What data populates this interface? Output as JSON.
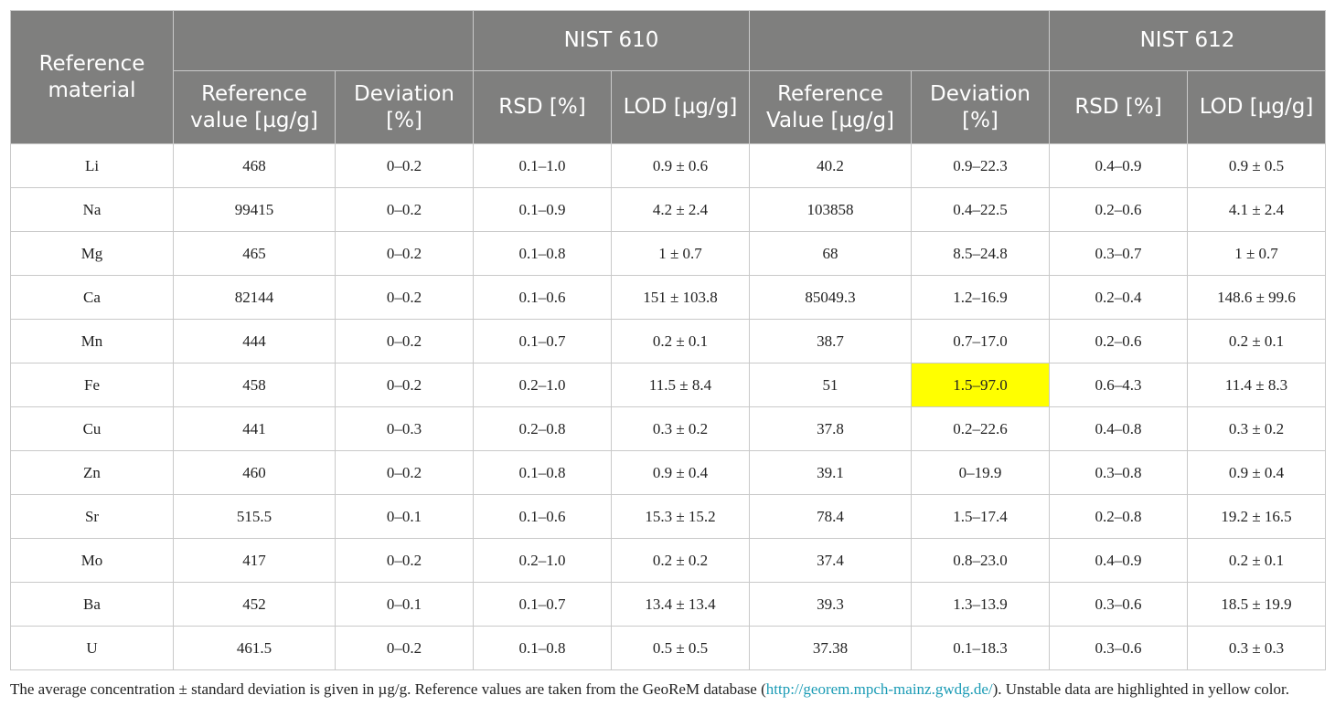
{
  "header": {
    "reference_material": "Reference material",
    "group1": "NIST 610",
    "group2": "NIST 612",
    "nist610": {
      "reference": "Reference value [µg/g]",
      "deviation": "Deviation [%]",
      "rsd": "RSD [%]",
      "lod": "LOD [µg/g]"
    },
    "nist612": {
      "reference": "Reference Value [µg/g]",
      "deviation": "Deviation [%]",
      "rsd": "RSD [%]",
      "lod": "LOD [µg/g]"
    }
  },
  "rows": [
    {
      "element": "Li",
      "ref610": "468",
      "dev610": "0–0.2",
      "rsd610": "0.1–1.0",
      "lod610": "0.9 ± 0.6",
      "ref612": "40.2",
      "dev612": "0.9–22.3",
      "rsd612": "0.4–0.9",
      "lod612": "0.9 ± 0.5"
    },
    {
      "element": "Na",
      "ref610": "99415",
      "dev610": "0–0.2",
      "rsd610": "0.1–0.9",
      "lod610": "4.2 ± 2.4",
      "ref612": "103858",
      "dev612": "0.4–22.5",
      "rsd612": "0.2–0.6",
      "lod612": "4.1 ± 2.4"
    },
    {
      "element": "Mg",
      "ref610": "465",
      "dev610": "0–0.2",
      "rsd610": "0.1–0.8",
      "lod610": "1 ± 0.7",
      "ref612": "68",
      "dev612": "8.5–24.8",
      "rsd612": "0.3–0.7",
      "lod612": "1 ± 0.7"
    },
    {
      "element": "Ca",
      "ref610": "82144",
      "dev610": "0–0.2",
      "rsd610": "0.1–0.6",
      "lod610": "151 ± 103.8",
      "ref612": "85049.3",
      "dev612": "1.2–16.9",
      "rsd612": "0.2–0.4",
      "lod612": "148.6 ± 99.6"
    },
    {
      "element": "Mn",
      "ref610": "444",
      "dev610": "0–0.2",
      "rsd610": "0.1–0.7",
      "lod610": "0.2 ± 0.1",
      "ref612": "38.7",
      "dev612": "0.7–17.0",
      "rsd612": "0.2–0.6",
      "lod612": "0.2 ± 0.1"
    },
    {
      "element": "Fe",
      "ref610": "458",
      "dev610": "0–0.2",
      "rsd610": "0.2–1.0",
      "lod610": "11.5 ± 8.4",
      "ref612": "51",
      "dev612": "1.5–97.0",
      "rsd612": "0.6–4.3",
      "lod612": "11.4 ± 8.3"
    },
    {
      "element": "Cu",
      "ref610": "441",
      "dev610": "0–0.3",
      "rsd610": "0.2–0.8",
      "lod610": "0.3 ± 0.2",
      "ref612": "37.8",
      "dev612": "0.2–22.6",
      "rsd612": "0.4–0.8",
      "lod612": "0.3 ± 0.2"
    },
    {
      "element": "Zn",
      "ref610": "460",
      "dev610": "0–0.2",
      "rsd610": "0.1–0.8",
      "lod610": "0.9 ± 0.4",
      "ref612": "39.1",
      "dev612": "0–19.9",
      "rsd612": "0.3–0.8",
      "lod612": "0.9 ± 0.4"
    },
    {
      "element": "Sr",
      "ref610": "515.5",
      "dev610": "0–0.1",
      "rsd610": "0.1–0.6",
      "lod610": "15.3 ± 15.2",
      "ref612": "78.4",
      "dev612": "1.5–17.4",
      "rsd612": "0.2–0.8",
      "lod612": "19.2 ± 16.5"
    },
    {
      "element": "Mo",
      "ref610": "417",
      "dev610": "0–0.2",
      "rsd610": "0.2–1.0",
      "lod610": "0.2 ± 0.2",
      "ref612": "37.4",
      "dev612": "0.8–23.0",
      "rsd612": "0.4–0.9",
      "lod612": "0.2 ± 0.1"
    },
    {
      "element": "Ba",
      "ref610": "452",
      "dev610": "0–0.1",
      "rsd610": "0.1–0.7",
      "lod610": "13.4 ± 13.4",
      "ref612": "39.3",
      "dev612": "1.3–13.9",
      "rsd612": "0.3–0.6",
      "lod612": "18.5 ± 19.9"
    },
    {
      "element": "U",
      "ref610": "461.5",
      "dev610": "0–0.2",
      "rsd610": "0.1–0.8",
      "lod610": "0.5 ± 0.5",
      "ref612": "37.38",
      "dev612": "0.1–18.3",
      "rsd612": "0.3–0.6",
      "lod612": "0.3 ± 0.3"
    }
  ],
  "highlight": {
    "row": 5,
    "column": "dev612",
    "color": "#ffff00"
  },
  "colors": {
    "header_bg": "#7f7f7e",
    "header_text": "#ffffff",
    "link": "#1a9bb5",
    "highlight": "#ffff00"
  },
  "footnote": {
    "before": "The average concentration ± standard deviation is given in µg/g. Reference values are taken from the GeoReM database (",
    "link": "http://georem.mpch-mainz.gwdg.de/",
    "after": "). Unstable data are highlighted in yellow color."
  }
}
